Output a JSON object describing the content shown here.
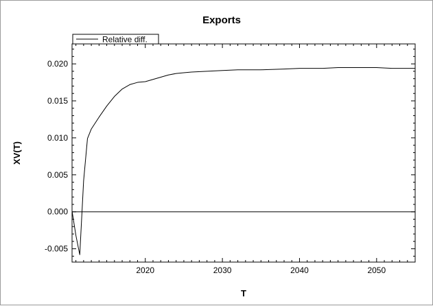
{
  "chart_data": {
    "type": "line",
    "title": "Exports",
    "xlabel": "T",
    "ylabel": "XV(T)",
    "xlim": [
      2010.5,
      2055
    ],
    "ylim": [
      -0.0068,
      0.0227
    ],
    "x_ticks": [
      2020,
      2030,
      2040,
      2050
    ],
    "x_tick_labels": [
      "2020",
      "2030",
      "2040",
      "2050"
    ],
    "y_ticks": [
      -0.005,
      0.0,
      0.005,
      0.01,
      0.015,
      0.02
    ],
    "y_tick_labels": [
      "-0.005",
      "0.000",
      "0.005",
      "0.010",
      "0.015",
      "0.020"
    ],
    "grid": false,
    "legend": {
      "placement": "top-left",
      "entries": [
        "Relative diff."
      ]
    },
    "reference_line_y": 0.0,
    "series": [
      {
        "name": "Relative diff.",
        "color": "#000000",
        "x": [
          2010.5,
          2011,
          2011.5,
          2012,
          2012.5,
          2013,
          2014,
          2015,
          2016,
          2017,
          2018,
          2019,
          2020,
          2021,
          2022,
          2023,
          2024,
          2025,
          2026,
          2028,
          2030,
          2032,
          2035,
          2038,
          2040,
          2043,
          2045,
          2048,
          2050,
          2052,
          2055
        ],
        "y": [
          0.0001,
          -0.0032,
          -0.0058,
          0.0042,
          0.0099,
          0.0112,
          0.0128,
          0.0143,
          0.0156,
          0.0166,
          0.0172,
          0.0175,
          0.0176,
          0.0179,
          0.0182,
          0.0185,
          0.0187,
          0.0188,
          0.0189,
          0.019,
          0.0191,
          0.0192,
          0.0192,
          0.0193,
          0.0194,
          0.0194,
          0.0195,
          0.0195,
          0.0195,
          0.0194,
          0.0194
        ]
      }
    ]
  }
}
